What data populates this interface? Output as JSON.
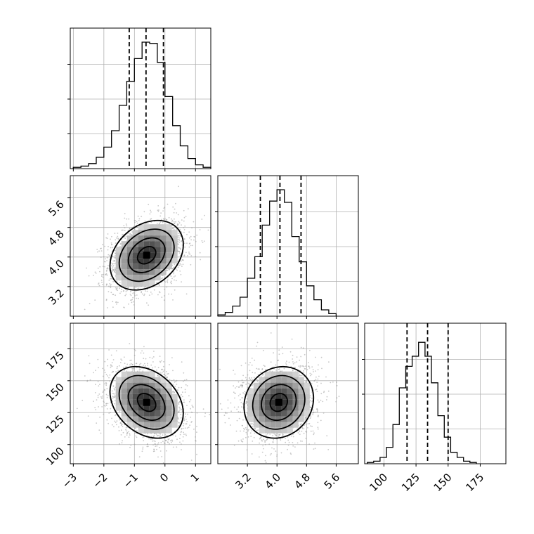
{
  "figure": {
    "type": "corner-plot",
    "background": "#ffffff",
    "ink": "#000000",
    "scatter_color": "#9a9a9a",
    "grid_color": "#b0b0b0"
  },
  "chart_data": [
    {
      "type": "bar",
      "panel": "marginal-param-0",
      "grid": true,
      "xlim": [
        -3.1,
        1.5
      ],
      "bins_start": -3.0,
      "bin_width": 0.25,
      "heights": [
        0.01,
        0.02,
        0.04,
        0.09,
        0.17,
        0.3,
        0.5,
        0.69,
        0.87,
        1.0,
        0.99,
        0.84,
        0.57,
        0.34,
        0.18,
        0.08,
        0.03,
        0.01
      ],
      "quantiles": [
        -1.17,
        -0.62,
        -0.05
      ]
    },
    {
      "type": "bar",
      "panel": "marginal-param-1",
      "grid": true,
      "xlim": [
        2.4,
        6.2
      ],
      "bins_start": 2.4,
      "bin_width": 0.2,
      "heights": [
        0.01,
        0.03,
        0.08,
        0.15,
        0.3,
        0.47,
        0.72,
        0.91,
        1.0,
        0.9,
        0.63,
        0.43,
        0.24,
        0.13,
        0.05,
        0.02
      ],
      "quantiles": [
        3.55,
        4.08,
        4.65
      ],
      "xticks": [
        "3.2",
        "4.0",
        "4.8",
        "5.6"
      ]
    },
    {
      "type": "bar",
      "panel": "marginal-param-2",
      "grid": true,
      "xlim": [
        85,
        195
      ],
      "bins_start": 87,
      "bin_width": 5,
      "heights": [
        0.01,
        0.02,
        0.05,
        0.13,
        0.31,
        0.6,
        0.77,
        0.85,
        0.96,
        0.85,
        0.64,
        0.38,
        0.21,
        0.09,
        0.05,
        0.02,
        0.01
      ],
      "quantiles": [
        118,
        134,
        150
      ],
      "xticks": [
        "100",
        "125",
        "150",
        "175"
      ]
    },
    {
      "type": "scatter",
      "panel": "joint-param-0-vs-param-1",
      "grid": true,
      "xlim": [
        -3.1,
        1.5
      ],
      "ylim": [
        2.4,
        6.2
      ],
      "mean": [
        -0.6,
        4.05
      ],
      "sd": [
        0.6,
        0.47
      ],
      "rho": 0.3,
      "contours": "density-levels",
      "yticks": [
        "3.2",
        "4.0",
        "4.8",
        "5.6"
      ]
    },
    {
      "type": "scatter",
      "panel": "joint-param-0-vs-param-2",
      "grid": true,
      "xlim": [
        -3.1,
        1.5
      ],
      "ylim": [
        85,
        195
      ],
      "mean": [
        -0.6,
        133
      ],
      "sd": [
        0.6,
        14
      ],
      "rho": -0.3,
      "contours": "density-levels",
      "xticks": [
        "−3",
        "−2",
        "−1",
        "0",
        "1"
      ],
      "yticks": [
        "100",
        "125",
        "150",
        "175"
      ]
    },
    {
      "type": "scatter",
      "panel": "joint-param-1-vs-param-2",
      "grid": true,
      "xlim": [
        2.4,
        6.2
      ],
      "ylim": [
        85,
        195
      ],
      "mean": [
        4.05,
        133
      ],
      "sd": [
        0.47,
        14
      ],
      "rho": 0.12,
      "contours": "density-levels",
      "xticks": [
        "3.2",
        "4.0",
        "4.8",
        "5.6"
      ]
    }
  ]
}
